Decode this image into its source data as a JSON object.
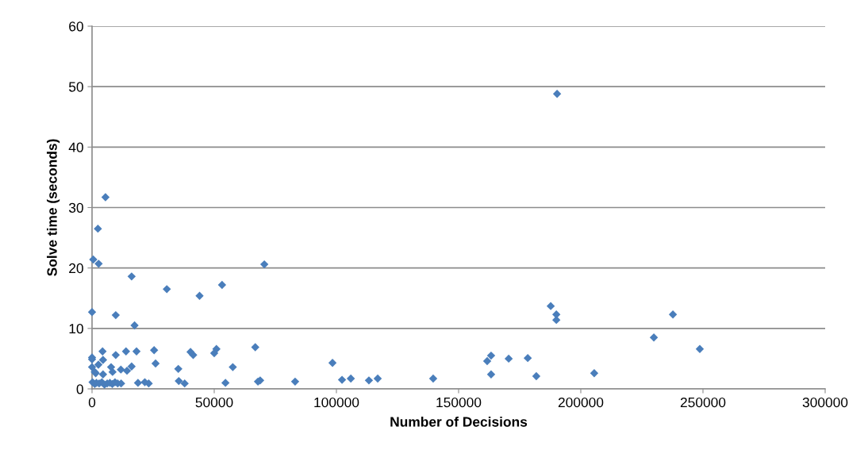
{
  "chart_data": {
    "type": "scatter",
    "xlabel": "Number of Decisions",
    "ylabel": "Solve time (seconds)",
    "xlim": [
      0,
      300000
    ],
    "xticks": [
      0,
      50000,
      100000,
      150000,
      200000,
      250000,
      300000
    ],
    "ylim": [
      0,
      60
    ],
    "yticks": [
      0,
      10,
      20,
      30,
      40,
      50,
      60
    ],
    "grid": "y",
    "marker": "diamond",
    "legend": false,
    "series": [
      {
        "color": "#4a7ebb",
        "x": [
          0,
          500,
          2400,
          2700,
          5500,
          16200,
          17400,
          9700,
          30600,
          44000,
          53200,
          70500,
          190300,
          187700,
          190000,
          190000,
          237700,
          229900,
          248700,
          205500,
          181800,
          178300,
          170500,
          163300,
          161700,
          163300,
          139600,
          116900,
          113300,
          105900,
          102300,
          98400,
          83100,
          68800,
          67900,
          66800,
          57600,
          54600,
          50900,
          50000,
          41400,
          40300,
          37900,
          35500,
          35300,
          26000,
          25400,
          23200,
          21600,
          18800,
          18200,
          16200,
          14300,
          13900,
          11800,
          8400,
          7800,
          9700,
          4500,
          4500,
          4300,
          2600,
          1500,
          1100,
          0,
          0,
          0,
          200,
          1100,
          1800,
          2900,
          4000,
          5100,
          6200,
          7300,
          8300,
          9400,
          10500,
          11900
        ],
        "values": [
          12.7,
          21.4,
          26.5,
          20.7,
          31.7,
          18.6,
          10.5,
          12.2,
          16.5,
          15.4,
          17.2,
          20.6,
          48.8,
          13.7,
          12.3,
          11.4,
          12.3,
          8.5,
          6.6,
          2.6,
          2.1,
          5.1,
          5.0,
          5.5,
          4.6,
          2.4,
          1.7,
          1.7,
          1.4,
          1.7,
          1.5,
          4.3,
          1.2,
          1.4,
          1.2,
          6.9,
          3.6,
          1.0,
          6.6,
          5.9,
          5.6,
          6.1,
          0.9,
          1.3,
          3.3,
          4.2,
          6.4,
          0.9,
          1.1,
          1.0,
          6.2,
          3.7,
          3.0,
          6.2,
          3.2,
          2.8,
          3.6,
          5.6,
          2.4,
          4.8,
          6.2,
          4.0,
          2.6,
          2.8,
          3.6,
          4.9,
          5.2,
          1.1,
          0.8,
          1.0,
          0.9,
          1.1,
          0.7,
          0.9,
          1.0,
          0.8,
          1.1,
          0.9,
          0.9
        ]
      }
    ]
  }
}
